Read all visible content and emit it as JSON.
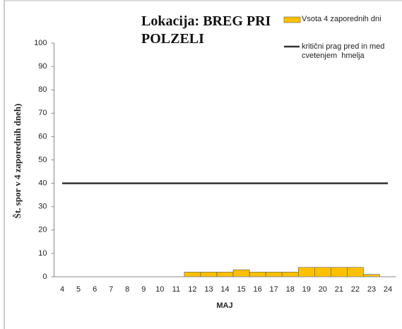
{
  "chart_data": {
    "type": "bar",
    "title": "Lokacija: BREG PRI POLZELI",
    "xlabel": "MAJ",
    "ylabel": "Št. spor v 4 zaporednih dneh)",
    "categories": [
      "4",
      "5",
      "6",
      "7",
      "8",
      "9",
      "10",
      "11",
      "12",
      "13",
      "14",
      "15",
      "16",
      "17",
      "18",
      "19",
      "20",
      "21",
      "22",
      "23",
      "24"
    ],
    "series": [
      {
        "name": "Vsota 4 zaporednih dni",
        "type": "bar",
        "color": "#FFC000",
        "values": [
          0,
          0,
          0,
          0,
          0,
          0,
          0,
          0,
          2,
          2,
          2,
          3,
          2,
          2,
          2,
          4,
          4,
          4,
          4,
          1,
          0
        ]
      },
      {
        "name": "kritični prag pred in med cvetenjem  hmelja",
        "type": "line",
        "color": "#333333",
        "values": [
          40,
          40,
          40,
          40,
          40,
          40,
          40,
          40,
          40,
          40,
          40,
          40,
          40,
          40,
          40,
          40,
          40,
          40,
          40,
          40,
          40
        ]
      }
    ],
    "ylim": [
      0,
      100
    ],
    "yticks": [
      0,
      10,
      20,
      30,
      40,
      50,
      60,
      70,
      80,
      90,
      100
    ],
    "grid": false
  }
}
